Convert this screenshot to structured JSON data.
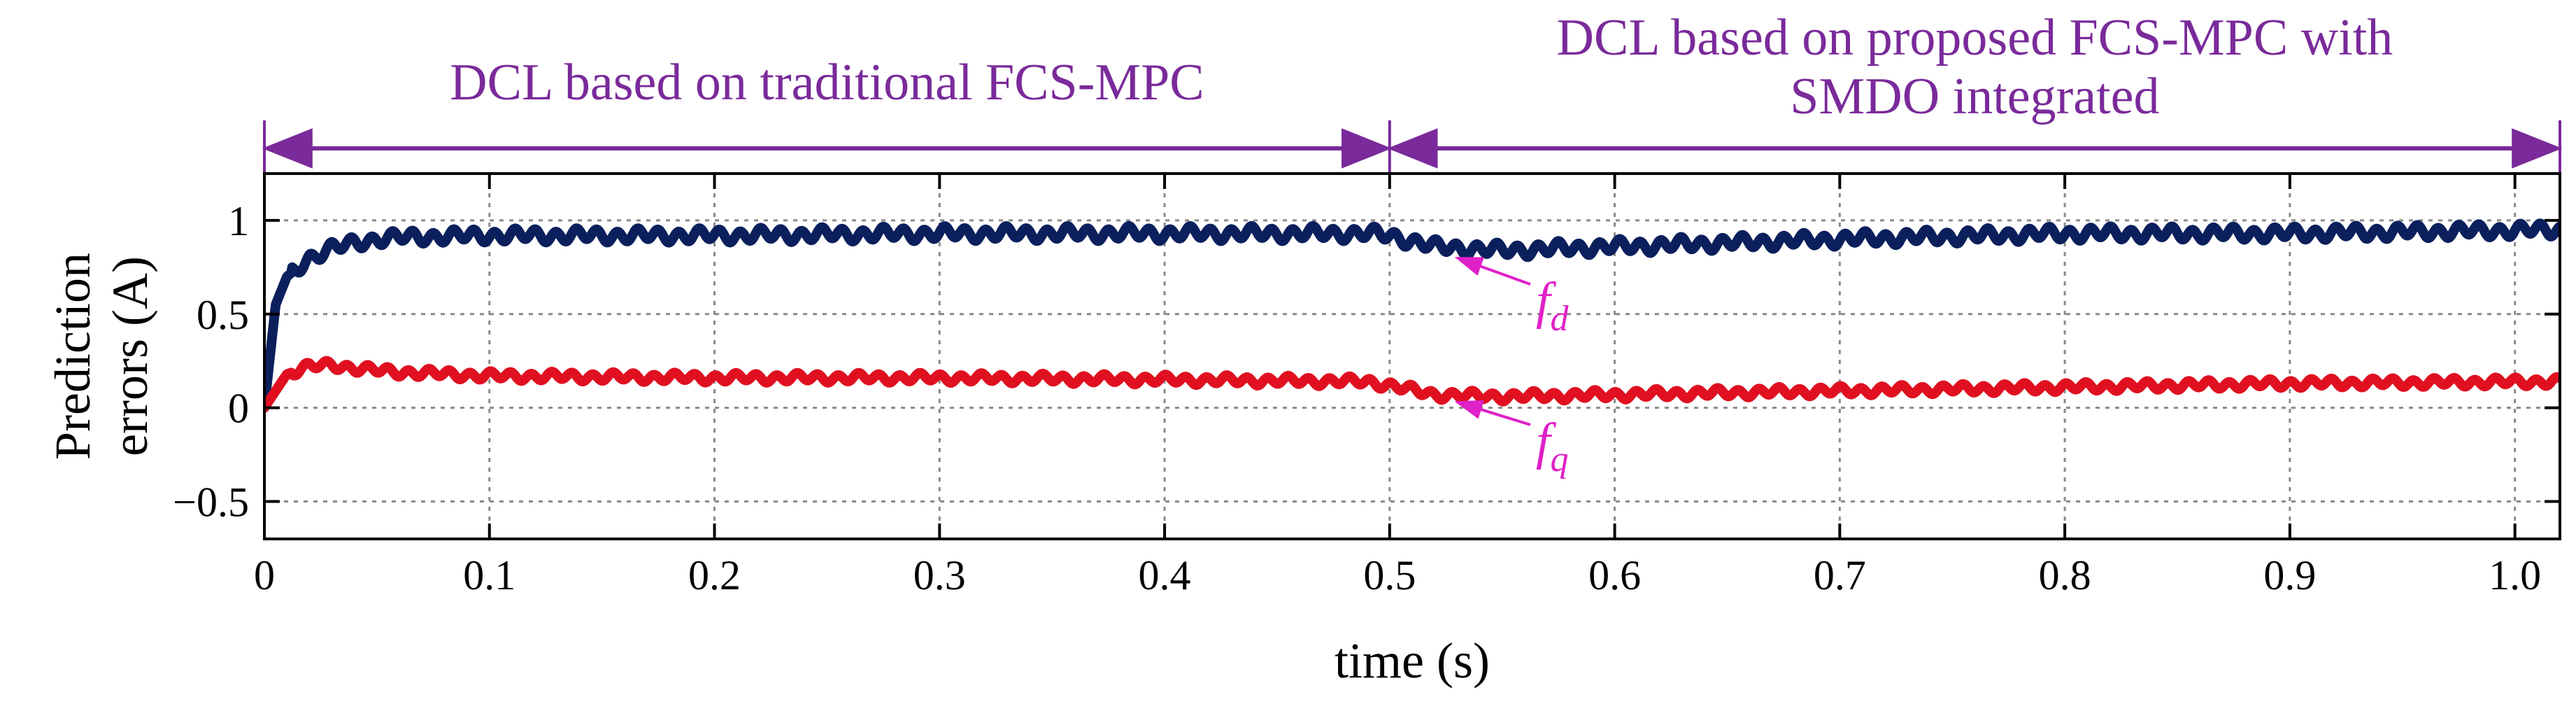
{
  "chart_data": {
    "type": "line",
    "title": "",
    "xlabel": "time (s)",
    "ylabel_lines": [
      "Prediction",
      "errors (A)"
    ],
    "xlim": [
      0,
      1.02
    ],
    "ylim": [
      -0.7,
      1.25
    ],
    "x_ticks": [
      0,
      0.1,
      0.2,
      0.3,
      0.4,
      0.5,
      0.6,
      0.7,
      0.8,
      0.9,
      1.0
    ],
    "x_tick_labels": [
      "0",
      "0.1",
      "0.2",
      "0.3",
      "0.4",
      "0.5",
      "0.6",
      "0.7",
      "0.8",
      "0.9",
      "1.0"
    ],
    "y_ticks": [
      1,
      0.5,
      0,
      -0.5
    ],
    "y_tick_labels": [
      "1",
      "0.5",
      "0",
      "−0.5"
    ],
    "grid": true,
    "series": [
      {
        "name": "f_d",
        "label_main": "f",
        "label_sub": "d",
        "color": "#0b1f5c",
        "x": [
          0,
          0.005,
          0.01,
          0.02,
          0.03,
          0.04,
          0.05,
          0.06,
          0.1,
          0.2,
          0.3,
          0.4,
          0.49,
          0.5,
          0.52,
          0.55,
          0.6,
          0.7,
          0.8,
          0.9,
          1.02
        ],
        "y": [
          0,
          0.55,
          0.7,
          0.8,
          0.85,
          0.88,
          0.9,
          0.91,
          0.92,
          0.92,
          0.93,
          0.93,
          0.93,
          0.92,
          0.86,
          0.84,
          0.86,
          0.9,
          0.93,
          0.93,
          0.95
        ],
        "ripple_amp": 0.03
      },
      {
        "name": "f_q",
        "label_main": "f",
        "label_sub": "q",
        "color": "#e01020",
        "x": [
          0,
          0.01,
          0.02,
          0.03,
          0.04,
          0.06,
          0.1,
          0.2,
          0.3,
          0.4,
          0.49,
          0.5,
          0.52,
          0.55,
          0.6,
          0.7,
          0.8,
          0.9,
          1.02
        ],
        "y": [
          0,
          0.18,
          0.22,
          0.23,
          0.21,
          0.19,
          0.17,
          0.16,
          0.16,
          0.15,
          0.14,
          0.12,
          0.07,
          0.06,
          0.07,
          0.09,
          0.11,
          0.13,
          0.14
        ],
        "ripple_amp": 0.02
      }
    ],
    "annotations": {
      "region1_label_lines": [
        "DCL  based on  traditional FCS-MPC"
      ],
      "region2_label_lines": [
        "DCL based on proposed FCS-MPC with",
        "SMDO integrated"
      ],
      "region_split_x": 0.5,
      "annotation_color": "#7a2a9a",
      "label_color": "#e020c8",
      "fd_label_pos": {
        "x": 0.565,
        "y": 0.48
      },
      "fd_arrow_tip": {
        "x": 0.53,
        "y": 0.8
      },
      "fq_label_pos": {
        "x": 0.565,
        "y": -0.27
      },
      "fq_arrow_tip": {
        "x": 0.53,
        "y": 0.03
      }
    }
  }
}
